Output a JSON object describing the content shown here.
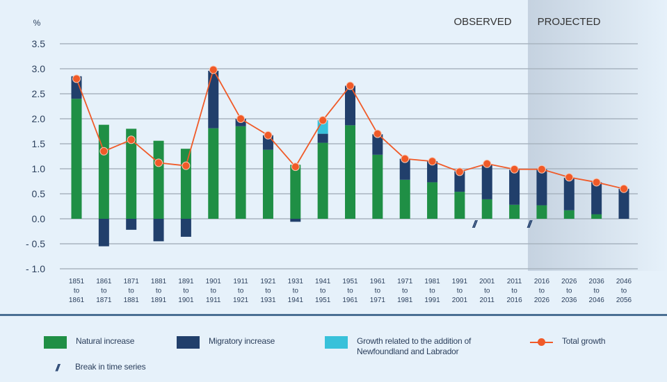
{
  "chart_data": {
    "type": "bar",
    "subtype": "stacked bar with line overlay",
    "title": "",
    "ylabel": "%",
    "xlabel": "",
    "ylim": [
      -1.0,
      3.5
    ],
    "yticks": [
      3.5,
      3.0,
      2.5,
      2.0,
      1.5,
      1.0,
      0.5,
      0.0,
      -0.5,
      -1.0
    ],
    "ytick_labels": [
      "3.5",
      "3.0",
      "2.5",
      "2.0",
      "1.5",
      "1.0",
      "0.5",
      "0.0",
      "- 0.5",
      "- 1.0"
    ],
    "grid": true,
    "categories": [
      [
        "1851",
        "to",
        "1861"
      ],
      [
        "1861",
        "to",
        "1871"
      ],
      [
        "1871",
        "to",
        "1881"
      ],
      [
        "1881",
        "to",
        "1891"
      ],
      [
        "1891",
        "to",
        "1901"
      ],
      [
        "1901",
        "to",
        "1911"
      ],
      [
        "1911",
        "to",
        "1921"
      ],
      [
        "1921",
        "to",
        "1931"
      ],
      [
        "1931",
        "to",
        "1941"
      ],
      [
        "1941",
        "to",
        "1951"
      ],
      [
        "1951",
        "to",
        "1961"
      ],
      [
        "1961",
        "to",
        "1971"
      ],
      [
        "1971",
        "to",
        "1981"
      ],
      [
        "1981",
        "to",
        "1991"
      ],
      [
        "1991",
        "to",
        "2001"
      ],
      [
        "2001",
        "to",
        "2011"
      ],
      [
        "2011",
        "to",
        "2016"
      ],
      [
        "2016",
        "to",
        "2026"
      ],
      [
        "2026",
        "to",
        "2036"
      ],
      [
        "2036",
        "to",
        "2046"
      ],
      [
        "2046",
        "to",
        "2056"
      ]
    ],
    "series": [
      {
        "name": "Natural increase",
        "kind": "bar",
        "color": "#1f8f45",
        "values": [
          2.4,
          1.88,
          1.8,
          1.56,
          1.4,
          1.81,
          1.85,
          1.38,
          1.08,
          1.52,
          1.87,
          1.28,
          0.78,
          0.73,
          0.54,
          0.39,
          0.28,
          0.27,
          0.17,
          0.09,
          0.0
        ]
      },
      {
        "name": "Migratory increase",
        "kind": "bar",
        "color": "#213f6b",
        "values": [
          0.45,
          -0.55,
          -0.22,
          -0.45,
          -0.36,
          1.15,
          0.15,
          0.29,
          -0.06,
          0.18,
          0.79,
          0.41,
          0.42,
          0.42,
          0.41,
          0.69,
          0.7,
          0.72,
          0.65,
          0.64,
          0.6
        ]
      },
      {
        "name": "Growth related to the addition of Newfoundland and Labrador",
        "kind": "bar",
        "color": "#38c1da",
        "values": [
          0,
          0,
          0,
          0,
          0,
          0,
          0,
          0,
          0,
          0.27,
          0,
          0,
          0,
          0,
          0,
          0,
          0,
          0,
          0,
          0,
          0
        ]
      },
      {
        "name": "Total growth",
        "kind": "line",
        "color": "#f05a28",
        "values": [
          2.8,
          1.35,
          1.58,
          1.12,
          1.06,
          2.98,
          2.0,
          1.67,
          1.04,
          1.97,
          2.66,
          1.7,
          1.2,
          1.15,
          0.94,
          1.1,
          0.99,
          0.99,
          0.83,
          0.73,
          0.6
        ]
      }
    ],
    "annotations": {
      "observed_label": "OBSERVED",
      "projected_label": "PROJECTED",
      "projected_start_index": 17,
      "break_glyph": "//",
      "break_between_indices": [
        [
          14,
          15
        ],
        [
          16,
          17
        ]
      ]
    },
    "legend_position": "bottom"
  },
  "legend": {
    "items": [
      {
        "label": "Natural increase",
        "color": "#1f8f45",
        "kind": "swatch"
      },
      {
        "label": "Migratory increase",
        "color": "#213f6b",
        "kind": "swatch"
      },
      {
        "label": "Growth related to the addition of",
        "label2": "Newfoundland and Labrador",
        "color": "#38c1da",
        "kind": "swatch"
      },
      {
        "label": "Total growth",
        "color": "#f05a28",
        "kind": "line"
      },
      {
        "label": "Break in time series",
        "glyph": "//",
        "kind": "glyph"
      }
    ]
  },
  "colors": {
    "background": "#e6f1fa",
    "grid": "#a8b4c0",
    "axis_text": "#2b3f5c",
    "projected_shade_start": "#c5d2e0",
    "projected_shade_end": "#e6f1fa"
  }
}
